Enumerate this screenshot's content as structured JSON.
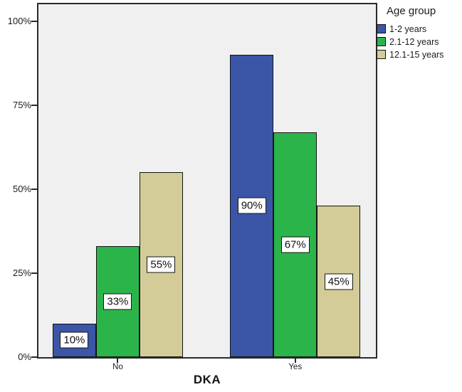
{
  "chart_data": {
    "type": "bar",
    "title": "",
    "xlabel": "DKA",
    "ylabel": "",
    "categories": [
      "No",
      "Yes"
    ],
    "series": [
      {
        "name": "1-2 years",
        "color": "#3b55a7",
        "values": [
          10,
          90
        ],
        "labels": [
          "10%",
          "90%"
        ]
      },
      {
        "name": "2.1-12 years",
        "color": "#2bb44a",
        "values": [
          33,
          67
        ],
        "labels": [
          "33%",
          "67%"
        ]
      },
      {
        "name": "12.1-15 years",
        "color": "#d4cc98",
        "values": [
          55,
          45
        ],
        "labels": [
          "55%",
          "45%"
        ]
      }
    ],
    "y_ticks": [
      {
        "value": 0,
        "label": "0%"
      },
      {
        "value": 25,
        "label": "25%"
      },
      {
        "value": 50,
        "label": "50%"
      },
      {
        "value": 75,
        "label": "75%"
      },
      {
        "value": 100,
        "label": "100%"
      }
    ],
    "ylim": [
      0,
      105
    ],
    "grid": false,
    "legend": {
      "title": "Age group",
      "position": "top-right"
    },
    "colors": {
      "plot_background": "#f0f0f1",
      "frame": "#2a2a2a",
      "text": "#1b1b1b",
      "label_box_background": "#ffffff"
    }
  }
}
